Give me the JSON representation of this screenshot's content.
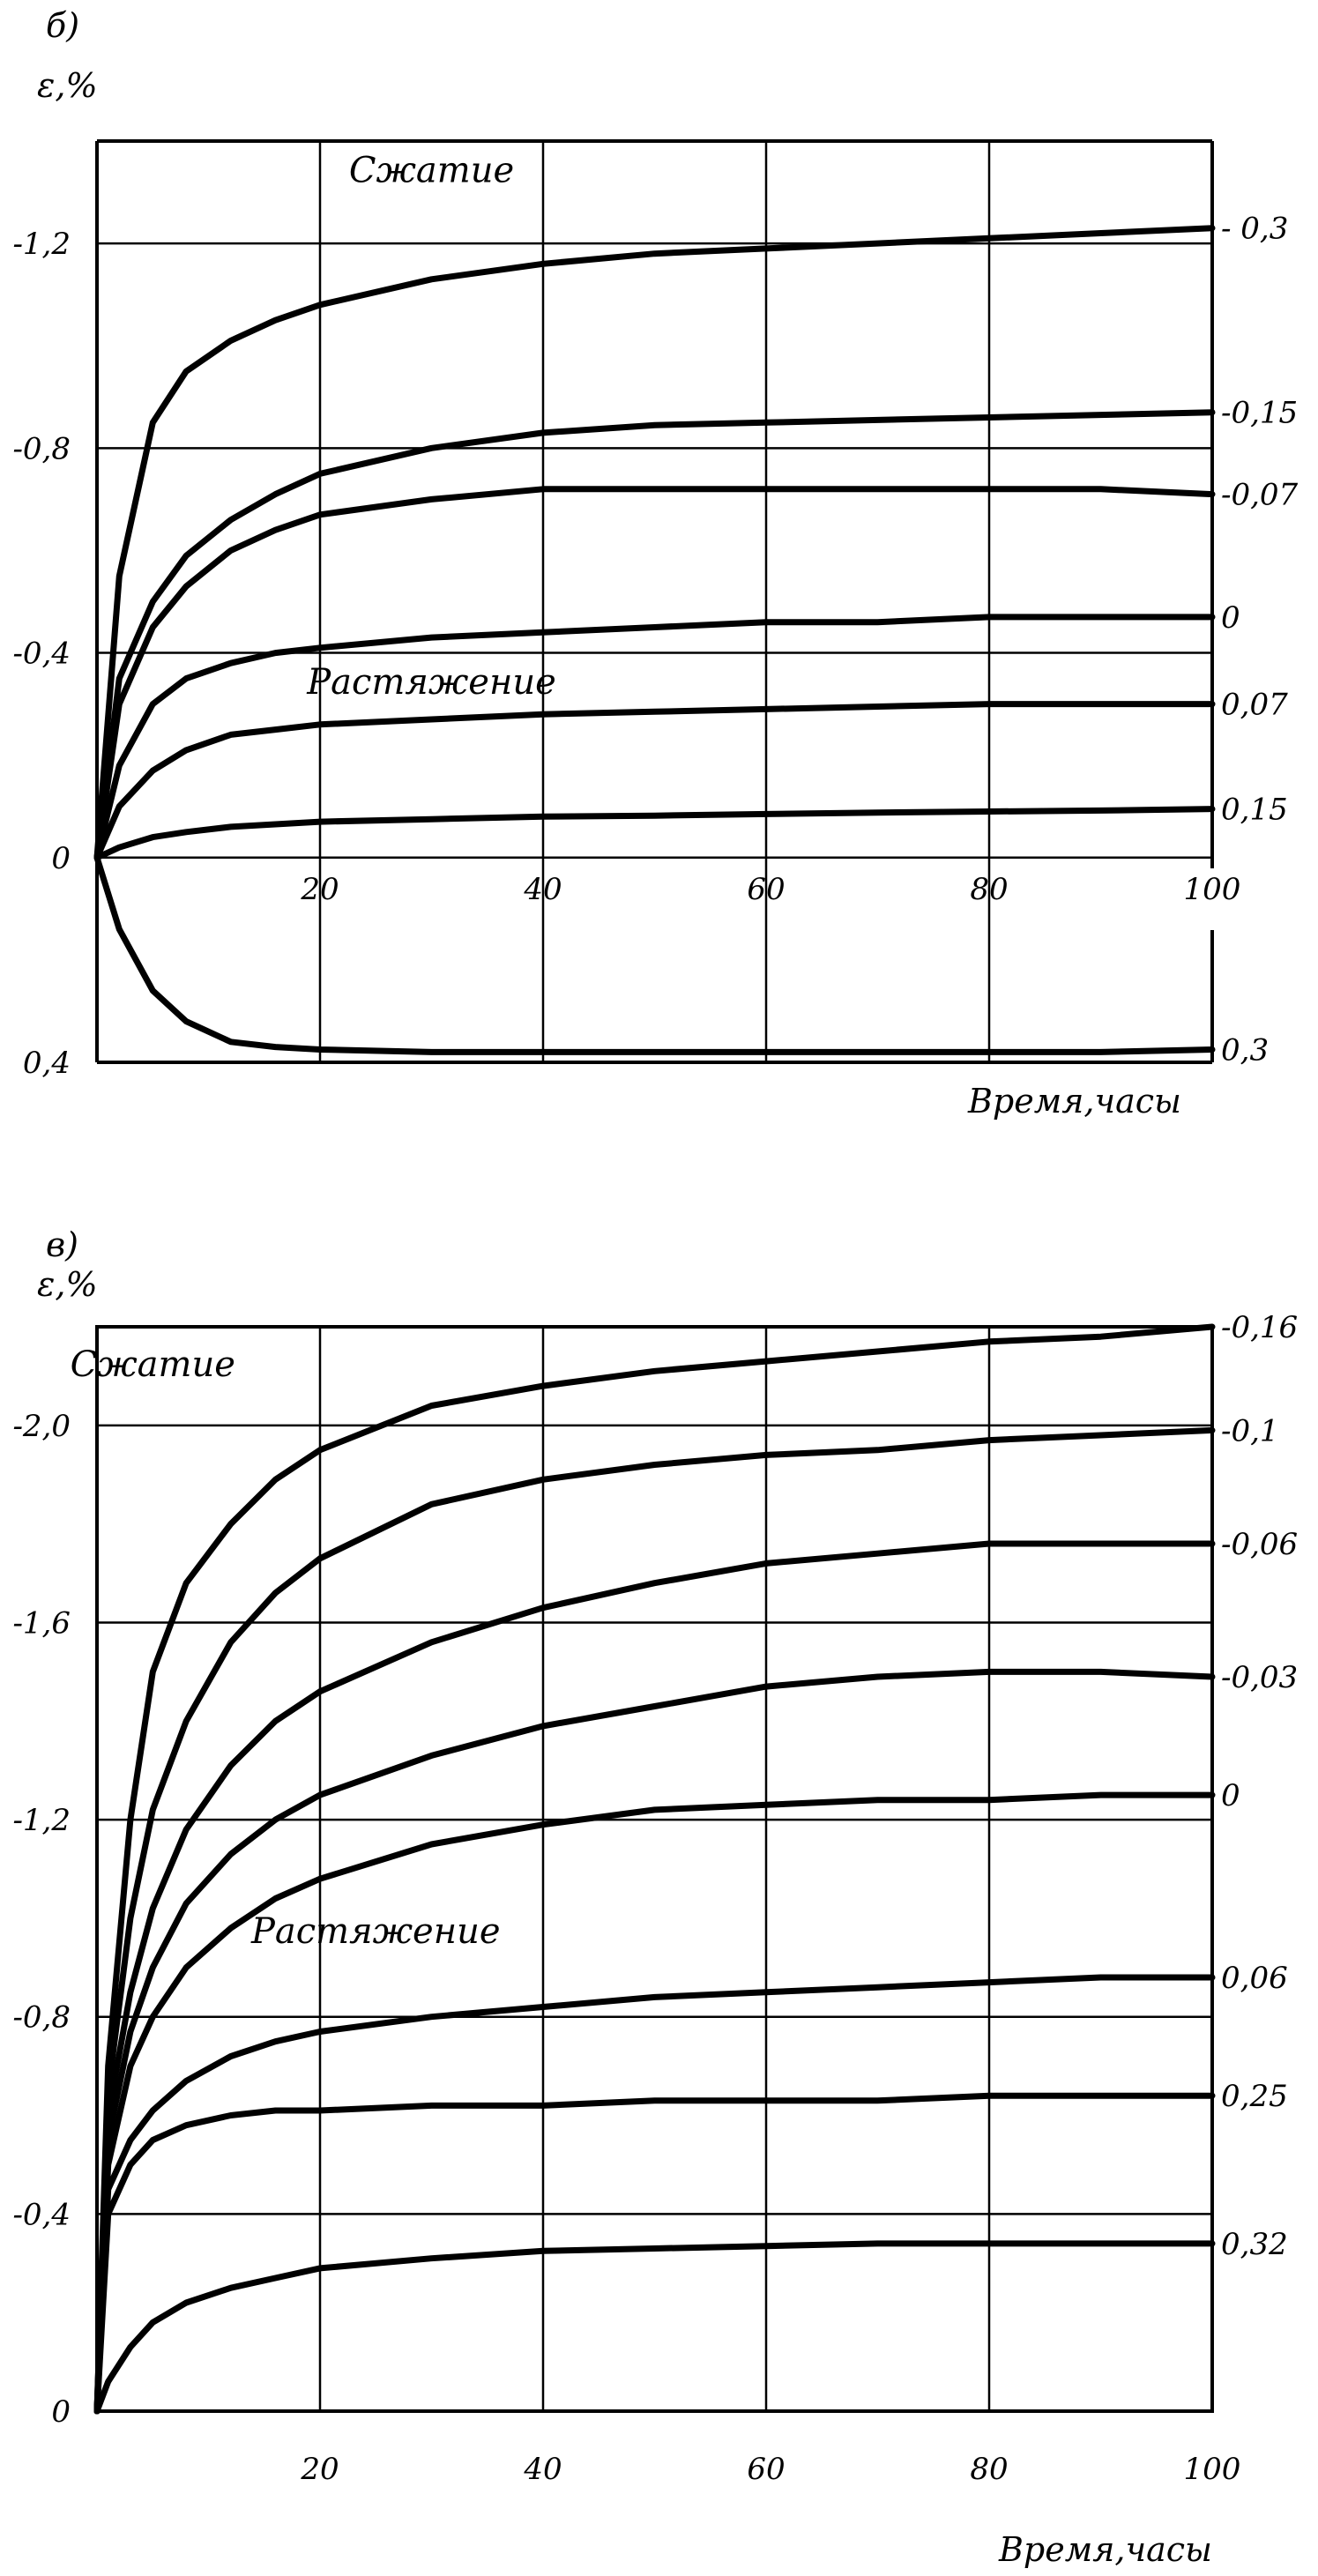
{
  "chart_data": [
    {
      "type": "line",
      "panel_label": "б)",
      "ylabel": "ε,%",
      "xlabel": "Время,часы",
      "xlim": [
        0,
        100
      ],
      "ylim": [
        0.4,
        -1.4
      ],
      "x_ticks": [
        20,
        40,
        60,
        80,
        100
      ],
      "x_tick_labels": [
        "20",
        "40",
        "60",
        "80",
        "100"
      ],
      "y_ticks": [
        -1.2,
        -0.8,
        -0.4,
        0,
        0.4
      ],
      "y_tick_labels": [
        "-1,2",
        "-0,8",
        "-0,4",
        "0",
        "0,4"
      ],
      "grid": true,
      "annotations": [
        {
          "text": "Сжатие",
          "x": 30,
          "y": -1.32
        },
        {
          "text": "Растяжение",
          "x": 30,
          "y": -0.32
        }
      ],
      "series": [
        {
          "name": "- 0,3",
          "x": [
            0,
            2,
            5,
            8,
            12,
            16,
            20,
            30,
            40,
            50,
            60,
            70,
            80,
            90,
            100
          ],
          "y": [
            0,
            -0.55,
            -0.85,
            -0.95,
            -1.01,
            -1.05,
            -1.08,
            -1.13,
            -1.16,
            -1.18,
            -1.19,
            -1.2,
            -1.21,
            -1.22,
            -1.23
          ]
        },
        {
          "name": "-0,15",
          "x": [
            0,
            2,
            5,
            8,
            12,
            16,
            20,
            30,
            40,
            50,
            60,
            70,
            80,
            90,
            100
          ],
          "y": [
            0,
            -0.35,
            -0.5,
            -0.59,
            -0.66,
            -0.71,
            -0.75,
            -0.8,
            -0.83,
            -0.845,
            -0.85,
            -0.855,
            -0.86,
            -0.865,
            -0.87
          ]
        },
        {
          "name": "-0,07",
          "x": [
            0,
            2,
            5,
            8,
            12,
            16,
            20,
            30,
            40,
            50,
            60,
            70,
            80,
            90,
            100
          ],
          "y": [
            0,
            -0.3,
            -0.45,
            -0.53,
            -0.6,
            -0.64,
            -0.67,
            -0.7,
            -0.72,
            -0.72,
            -0.72,
            -0.72,
            -0.72,
            -0.72,
            -0.71
          ]
        },
        {
          "name": "0",
          "x": [
            0,
            2,
            5,
            8,
            12,
            16,
            20,
            30,
            40,
            50,
            60,
            70,
            80,
            90,
            100
          ],
          "y": [
            0,
            -0.18,
            -0.3,
            -0.35,
            -0.38,
            -0.4,
            -0.41,
            -0.43,
            -0.44,
            -0.45,
            -0.46,
            -0.46,
            -0.47,
            -0.47,
            -0.47
          ]
        },
        {
          "name": "0,07",
          "x": [
            0,
            2,
            5,
            8,
            12,
            16,
            20,
            30,
            40,
            50,
            60,
            70,
            80,
            90,
            100
          ],
          "y": [
            0,
            -0.1,
            -0.17,
            -0.21,
            -0.24,
            -0.25,
            -0.26,
            -0.27,
            -0.28,
            -0.285,
            -0.29,
            -0.295,
            -0.3,
            -0.3,
            -0.3
          ]
        },
        {
          "name": "0,15",
          "x": [
            0,
            2,
            5,
            8,
            12,
            16,
            20,
            30,
            40,
            50,
            60,
            70,
            80,
            90,
            100
          ],
          "y": [
            0,
            -0.02,
            -0.04,
            -0.05,
            -0.06,
            -0.065,
            -0.07,
            -0.075,
            -0.08,
            -0.082,
            -0.085,
            -0.088,
            -0.09,
            -0.092,
            -0.095
          ]
        },
        {
          "name": "0,3",
          "x": [
            0,
            2,
            5,
            8,
            12,
            16,
            20,
            30,
            40,
            50,
            60,
            70,
            80,
            90,
            100
          ],
          "y": [
            0,
            0.14,
            0.26,
            0.32,
            0.36,
            0.37,
            0.375,
            0.38,
            0.38,
            0.38,
            0.38,
            0.38,
            0.38,
            0.38,
            0.375
          ]
        }
      ]
    },
    {
      "type": "line",
      "panel_label": "в)",
      "ylabel": "ε,%",
      "xlabel": "Время,часы",
      "xlim": [
        0,
        100
      ],
      "ylim": [
        0,
        -2.2
      ],
      "x_ticks": [
        20,
        40,
        60,
        80,
        100
      ],
      "x_tick_labels": [
        "20",
        "40",
        "60",
        "80",
        "100"
      ],
      "y_ticks": [
        -2.0,
        -1.6,
        -1.2,
        -0.8,
        -0.4,
        0
      ],
      "y_tick_labels": [
        "-2,0",
        "-1,6",
        "-1,2",
        "-0,8",
        "-0,4",
        "0"
      ],
      "grid": true,
      "annotations": [
        {
          "text": "Сжатие",
          "x": 5,
          "y": -2.1
        },
        {
          "text": "Растяжение",
          "x": 25,
          "y": -0.95
        }
      ],
      "series": [
        {
          "name": "-0,16",
          "x": [
            0,
            1,
            3,
            5,
            8,
            12,
            16,
            20,
            30,
            40,
            50,
            60,
            70,
            80,
            90,
            100
          ],
          "y": [
            0,
            -0.7,
            -1.2,
            -1.5,
            -1.68,
            -1.8,
            -1.89,
            -1.95,
            -2.04,
            -2.08,
            -2.11,
            -2.13,
            -2.15,
            -2.17,
            -2.18,
            -2.2
          ]
        },
        {
          "name": "-0,1",
          "x": [
            0,
            1,
            3,
            5,
            8,
            12,
            16,
            20,
            30,
            40,
            50,
            60,
            70,
            80,
            90,
            100
          ],
          "y": [
            0,
            -0.65,
            -1.0,
            -1.22,
            -1.4,
            -1.56,
            -1.66,
            -1.73,
            -1.84,
            -1.89,
            -1.92,
            -1.94,
            -1.95,
            -1.97,
            -1.98,
            -1.99
          ]
        },
        {
          "name": "-0,06",
          "x": [
            0,
            1,
            3,
            5,
            8,
            12,
            16,
            20,
            30,
            40,
            50,
            60,
            70,
            80,
            90,
            100
          ],
          "y": [
            0,
            -0.6,
            -0.85,
            -1.02,
            -1.18,
            -1.31,
            -1.4,
            -1.46,
            -1.56,
            -1.63,
            -1.68,
            -1.72,
            -1.74,
            -1.76,
            -1.76,
            -1.76
          ]
        },
        {
          "name": "-0,03",
          "x": [
            0,
            1,
            3,
            5,
            8,
            12,
            16,
            20,
            30,
            40,
            50,
            60,
            70,
            80,
            90,
            100
          ],
          "y": [
            0,
            -0.55,
            -0.77,
            -0.9,
            -1.03,
            -1.13,
            -1.2,
            -1.25,
            -1.33,
            -1.39,
            -1.43,
            -1.47,
            -1.49,
            -1.5,
            -1.5,
            -1.49
          ]
        },
        {
          "name": "0",
          "x": [
            0,
            1,
            3,
            5,
            8,
            12,
            16,
            20,
            30,
            40,
            50,
            60,
            70,
            80,
            90,
            100
          ],
          "y": [
            0,
            -0.5,
            -0.7,
            -0.8,
            -0.9,
            -0.98,
            -1.04,
            -1.08,
            -1.15,
            -1.19,
            -1.22,
            -1.23,
            -1.24,
            -1.24,
            -1.25,
            -1.25
          ]
        },
        {
          "name": "0,06",
          "x": [
            0,
            1,
            3,
            5,
            8,
            12,
            16,
            20,
            30,
            40,
            50,
            60,
            70,
            80,
            90,
            100
          ],
          "y": [
            0,
            -0.45,
            -0.55,
            -0.61,
            -0.67,
            -0.72,
            -0.75,
            -0.77,
            -0.8,
            -0.82,
            -0.84,
            -0.85,
            -0.86,
            -0.87,
            -0.88,
            -0.88
          ]
        },
        {
          "name": "0,25",
          "x": [
            0,
            1,
            3,
            5,
            8,
            12,
            16,
            20,
            30,
            40,
            50,
            60,
            70,
            80,
            90,
            100
          ],
          "y": [
            0,
            -0.4,
            -0.5,
            -0.55,
            -0.58,
            -0.6,
            -0.61,
            -0.61,
            -0.62,
            -0.62,
            -0.63,
            -0.63,
            -0.63,
            -0.64,
            -0.64,
            -0.64
          ]
        },
        {
          "name": "0,32",
          "x": [
            0,
            1,
            3,
            5,
            8,
            12,
            16,
            20,
            30,
            40,
            50,
            60,
            70,
            80,
            90,
            100
          ],
          "y": [
            0,
            -0.06,
            -0.13,
            -0.18,
            -0.22,
            -0.25,
            -0.27,
            -0.29,
            -0.31,
            -0.325,
            -0.33,
            -0.335,
            -0.34,
            -0.34,
            -0.34,
            -0.34
          ]
        }
      ]
    }
  ]
}
